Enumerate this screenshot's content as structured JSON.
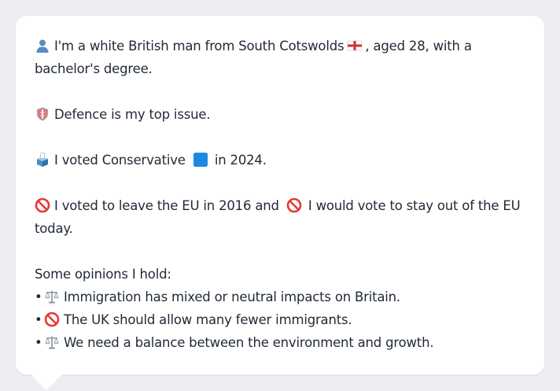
{
  "persona": {
    "identity": {
      "icon": "person-silhouette-icon",
      "text_before_flag": "I'm a white British man from South Cotswolds",
      "flag_icon": "england-flag-icon",
      "text_after_flag": ", aged 28, with a bachelor's degree."
    },
    "top_issue": {
      "icon": "shield-icon",
      "text": "Defence is my top issue."
    },
    "vote_2024": {
      "icon": "ballot-box-icon",
      "text_before": "I voted Conservative",
      "party_icon": "blue-square-icon",
      "text_after": "in 2024."
    },
    "eu": {
      "icon": "no-entry-icon",
      "text_before": "I voted to leave the EU in 2016 and",
      "second_icon": "no-entry-icon",
      "text_after": "I would vote to stay out of the EU today."
    },
    "opinions": {
      "heading": "Some opinions I hold:",
      "bullet": "•",
      "items": [
        {
          "icon": "balance-scale-icon",
          "text": "Immigration has mixed or neutral impacts on Britain."
        },
        {
          "icon": "no-entry-icon",
          "text": "The UK should allow many fewer immigrants."
        },
        {
          "icon": "balance-scale-icon",
          "text": "We need a balance between the environment and growth."
        }
      ]
    }
  },
  "colors": {
    "page_background": "#eceef1",
    "card_background": "#ffffff",
    "text": "#1f2937",
    "party_blue": "#1e88e5",
    "no_entry_red": "#e53935"
  }
}
